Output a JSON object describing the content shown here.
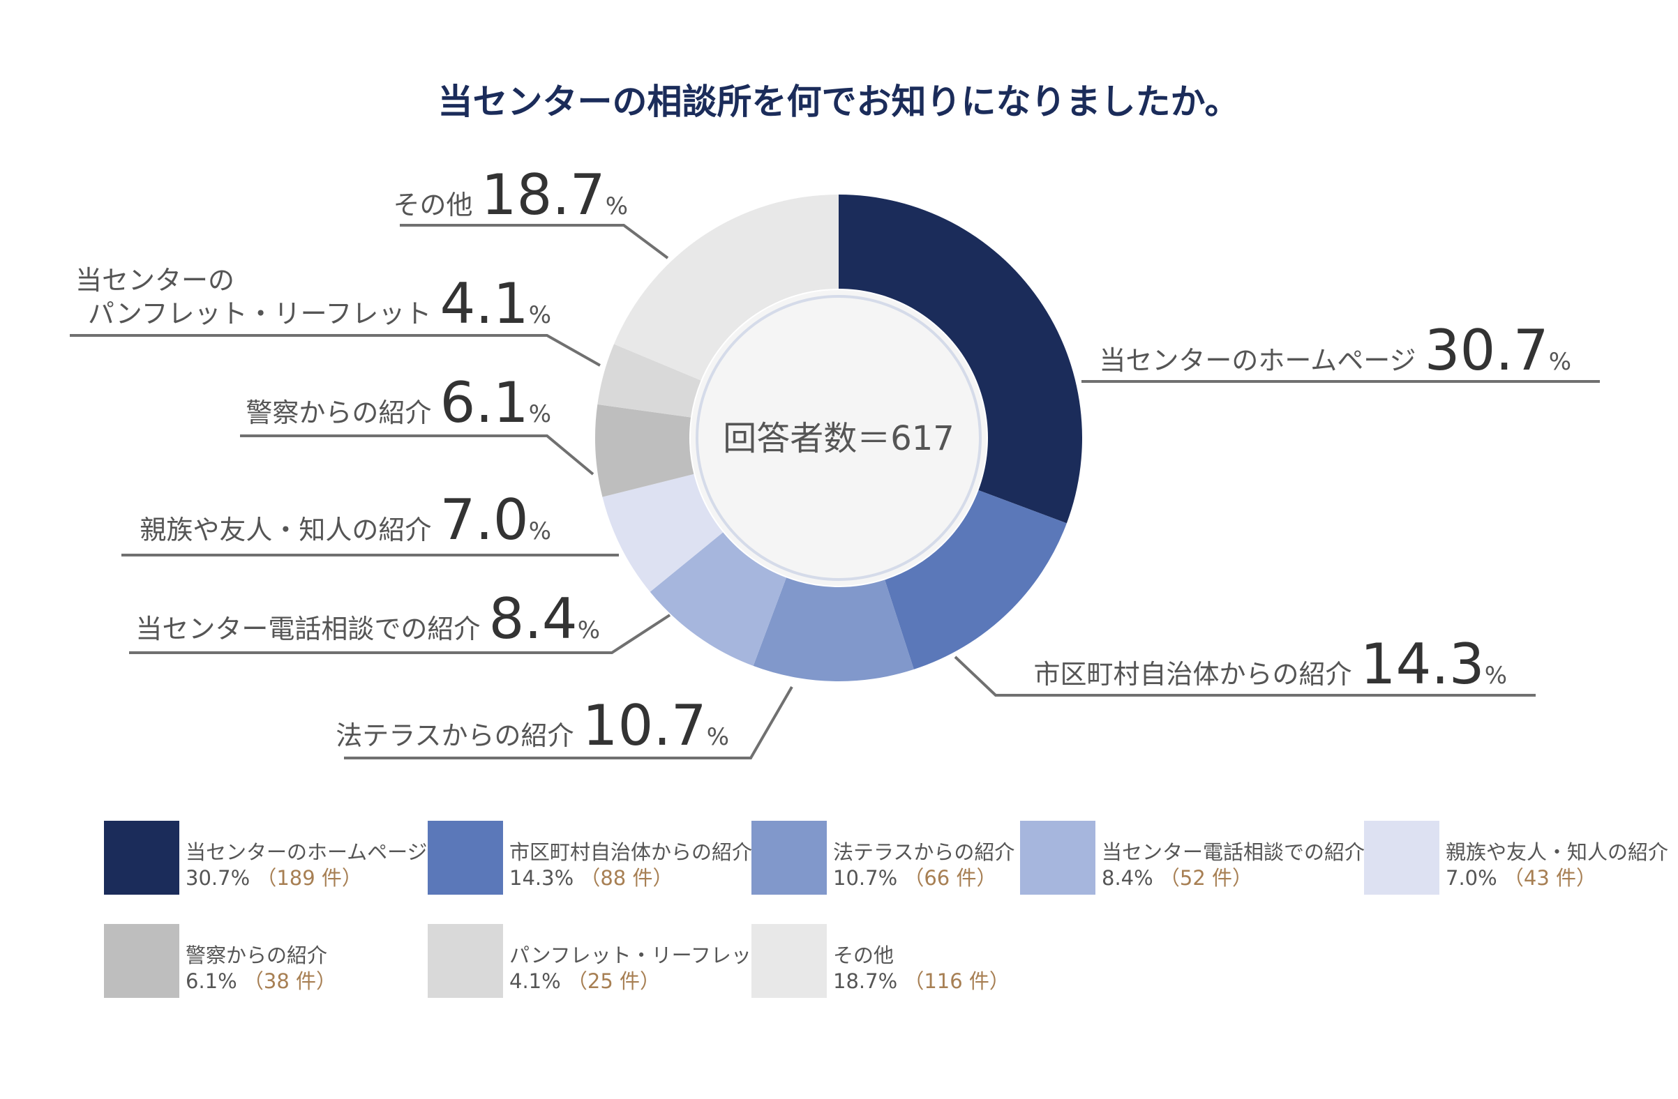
{
  "chart_data": {
    "type": "pie",
    "variant": "donut",
    "title": "当センターの相談所を何でお知りになりましたか。",
    "center_label": "回答者数＝617",
    "total_respondents": 617,
    "unit": "%",
    "count_unit": "件",
    "start_angle": "12 o'clock",
    "direction": "clockwise",
    "legend_position": "bottom",
    "slices": [
      {
        "label": "当センターのホームページ",
        "callout_lines": [
          "当センターのホームページ"
        ],
        "value": 30.7,
        "count": 189,
        "color": "#1b2c5a",
        "side": "right"
      },
      {
        "label": "市区町村自治体からの紹介",
        "callout_lines": [
          "市区町村自治体からの紹介"
        ],
        "value": 14.3,
        "count": 88,
        "color": "#5b78b9",
        "side": "right"
      },
      {
        "label": "法テラスからの紹介",
        "callout_lines": [
          "法テラスからの紹介"
        ],
        "value": 10.7,
        "count": 66,
        "color": "#8198cb",
        "side": "left"
      },
      {
        "label": "当センター電話相談での紹介",
        "callout_lines": [
          "当センター電話相談での紹介"
        ],
        "value": 8.4,
        "count": 52,
        "color": "#a6b6dd",
        "side": "left"
      },
      {
        "label": "親族や友人・知人の紹介",
        "callout_lines": [
          "親族や友人・知人の紹介"
        ],
        "value": 7.0,
        "count": 43,
        "color": "#dde1f2",
        "side": "left"
      },
      {
        "label": "警察からの紹介",
        "callout_lines": [
          "警察からの紹介"
        ],
        "value": 6.1,
        "count": 38,
        "color": "#bebebe",
        "side": "left"
      },
      {
        "label": "パンフレット・リーフレット",
        "callout_lines": [
          "当センターの",
          "パンフレット・リーフレット"
        ],
        "value": 4.1,
        "count": 25,
        "color": "#d9d9d9",
        "side": "left"
      },
      {
        "label": "その他",
        "callout_lines": [
          "その他"
        ],
        "value": 18.7,
        "count": 116,
        "color": "#e8e8e8",
        "side": "left"
      }
    ]
  }
}
